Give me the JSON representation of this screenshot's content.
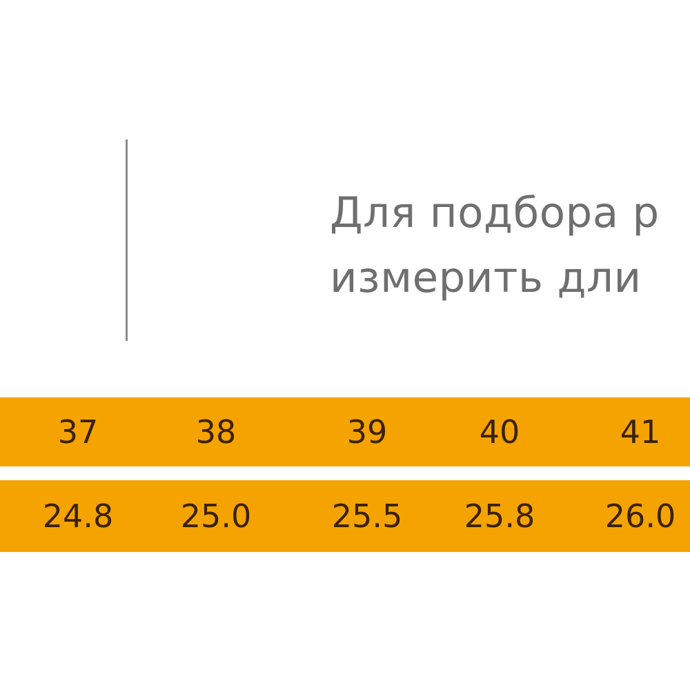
{
  "instruction": {
    "line1": "Для подбора р",
    "line2": "измерить дли"
  },
  "size_row": [
    "37",
    "38",
    "39",
    "40",
    "41"
  ],
  "length_row": [
    "24.8",
    "25.0",
    "25.5",
    "25.8",
    "26.0"
  ],
  "colors": {
    "band": "#f5a300",
    "band_text": "#3a2200",
    "instruction_text": "#6f6f6f",
    "divider": "#8a8a8a"
  }
}
